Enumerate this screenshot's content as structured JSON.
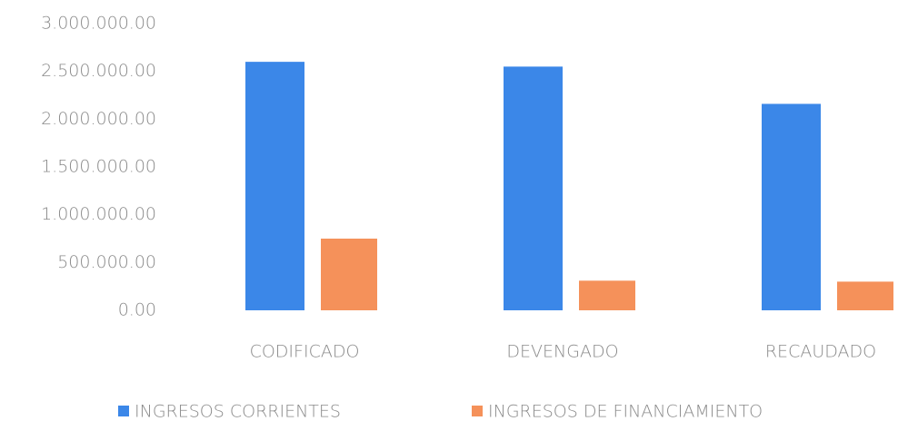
{
  "chart_data": {
    "type": "bar",
    "categories": [
      "CODIFICADO",
      "DEVENGADO",
      "RECAUDADO"
    ],
    "series": [
      {
        "name": "INGRESOS CORRIENTES",
        "color": "#3b87e8",
        "values": [
          2600000,
          2550000,
          2160000
        ]
      },
      {
        "name": "INGRESOS DE FINANCIAMIENTO",
        "color": "#f5915a",
        "values": [
          750000,
          310000,
          300000
        ]
      }
    ],
    "ylim": [
      0,
      3000000
    ],
    "yticks": [
      {
        "value": 0,
        "label": "0.00"
      },
      {
        "value": 500000,
        "label": "500.000.00"
      },
      {
        "value": 1000000,
        "label": "1.000.000.00"
      },
      {
        "value": 1500000,
        "label": "1.500.000.00"
      },
      {
        "value": 2000000,
        "label": "2.000.000.00"
      },
      {
        "value": 2500000,
        "label": "2.500.000.00"
      },
      {
        "value": 3000000,
        "label": "3.000.000.00"
      }
    ],
    "grid": false,
    "legend": "bottom"
  }
}
